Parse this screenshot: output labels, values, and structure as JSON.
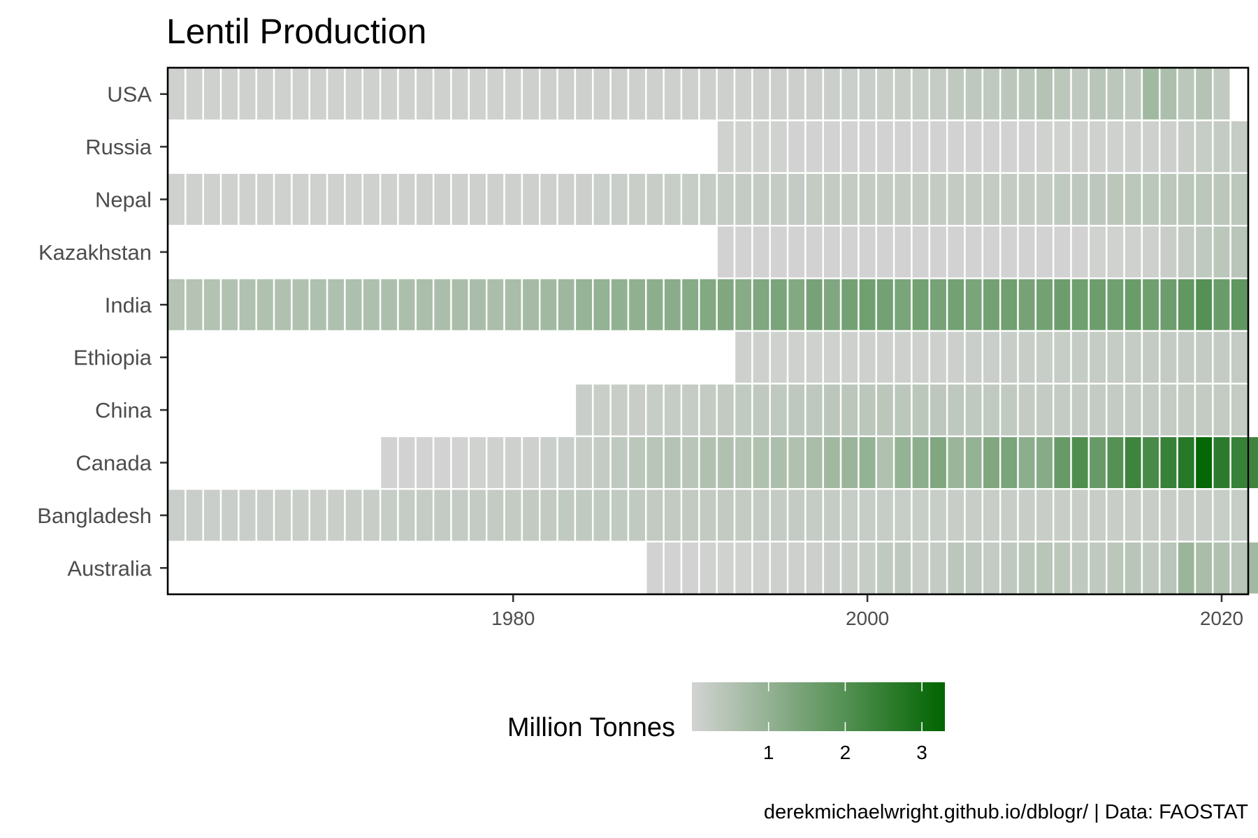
{
  "chart_data": {
    "type": "heatmap",
    "title": "Lentil Production",
    "xlabel": "",
    "ylabel": "",
    "x_ticks": [
      1980,
      2000,
      2020
    ],
    "x_range": [
      1961,
      2021
    ],
    "grid": false,
    "legend": {
      "title": "Million Tonnes",
      "ticks": [
        1,
        2,
        3
      ],
      "range": [
        0,
        3.3
      ],
      "placement": "bottom",
      "colors": {
        "low": "#d3d3d3",
        "high": "#006400"
      }
    },
    "caption": "derekmichaelwright.github.io/dblogr/ | Data: FAOSTAT",
    "series": [
      {
        "name": "USA",
        "start_year": 1961,
        "values": [
          0.03,
          0.03,
          0.03,
          0.03,
          0.03,
          0.03,
          0.03,
          0.03,
          0.03,
          0.03,
          0.03,
          0.03,
          0.03,
          0.03,
          0.03,
          0.03,
          0.03,
          0.03,
          0.03,
          0.03,
          0.04,
          0.04,
          0.04,
          0.04,
          0.04,
          0.04,
          0.05,
          0.05,
          0.05,
          0.05,
          0.05,
          0.05,
          0.05,
          0.06,
          0.06,
          0.06,
          0.06,
          0.07,
          0.07,
          0.08,
          0.09,
          0.1,
          0.12,
          0.14,
          0.2,
          0.22,
          0.2,
          0.24,
          0.24,
          0.35,
          0.25,
          0.2,
          0.28,
          0.24,
          0.2,
          0.6,
          0.45,
          0.25,
          0.35,
          0.18
        ]
      },
      {
        "name": "Russia",
        "start_year": 1992,
        "values": [
          0.02,
          0.02,
          0.02,
          0.02,
          0.01,
          0.01,
          0.01,
          0.01,
          0.01,
          0.01,
          0.01,
          0.01,
          0.01,
          0.01,
          0.01,
          0.01,
          0.01,
          0.01,
          0.02,
          0.02,
          0.03,
          0.03,
          0.03,
          0.05,
          0.05,
          0.06,
          0.1,
          0.12,
          0.15,
          0.14
        ]
      },
      {
        "name": "Nepal",
        "start_year": 1961,
        "values": [
          0.03,
          0.03,
          0.03,
          0.03,
          0.03,
          0.03,
          0.03,
          0.03,
          0.03,
          0.03,
          0.03,
          0.03,
          0.03,
          0.03,
          0.04,
          0.04,
          0.04,
          0.04,
          0.04,
          0.04,
          0.04,
          0.05,
          0.05,
          0.06,
          0.07,
          0.08,
          0.09,
          0.1,
          0.11,
          0.12,
          0.13,
          0.14,
          0.15,
          0.15,
          0.15,
          0.15,
          0.16,
          0.16,
          0.16,
          0.16,
          0.16,
          0.16,
          0.16,
          0.16,
          0.16,
          0.16,
          0.16,
          0.16,
          0.16,
          0.16,
          0.2,
          0.22,
          0.23,
          0.24,
          0.25,
          0.25,
          0.25,
          0.25,
          0.25,
          0.25,
          0.25
        ]
      },
      {
        "name": "Kazakhstan",
        "start_year": 1992,
        "values": [
          0.01,
          0.01,
          0.01,
          0.01,
          0.01,
          0.01,
          0.01,
          0.01,
          0.01,
          0.01,
          0.01,
          0.01,
          0.01,
          0.01,
          0.01,
          0.01,
          0.01,
          0.01,
          0.01,
          0.01,
          0.01,
          0.02,
          0.02,
          0.03,
          0.05,
          0.1,
          0.15,
          0.2,
          0.25,
          0.3
        ]
      },
      {
        "name": "India",
        "start_year": 1961,
        "values": [
          0.35,
          0.35,
          0.36,
          0.37,
          0.38,
          0.4,
          0.4,
          0.4,
          0.42,
          0.42,
          0.44,
          0.44,
          0.45,
          0.45,
          0.46,
          0.47,
          0.48,
          0.48,
          0.47,
          0.5,
          0.55,
          0.6,
          0.65,
          0.75,
          0.8,
          0.82,
          0.85,
          0.9,
          0.95,
          1.0,
          1.05,
          1.1,
          1.0,
          1.1,
          1.2,
          1.05,
          1.25,
          1.1,
          1.3,
          1.35,
          1.3,
          1.2,
          1.3,
          1.25,
          1.3,
          1.2,
          1.3,
          1.35,
          1.25,
          1.3,
          1.4,
          1.35,
          1.4,
          1.35,
          1.45,
          1.35,
          1.4,
          1.6,
          1.8,
          1.45,
          1.62
        ]
      },
      {
        "name": "Ethiopia",
        "start_year": 1993,
        "values": [
          0.04,
          0.04,
          0.03,
          0.03,
          0.03,
          0.03,
          0.04,
          0.04,
          0.04,
          0.04,
          0.05,
          0.04,
          0.06,
          0.08,
          0.08,
          0.1,
          0.1,
          0.11,
          0.12,
          0.13,
          0.14,
          0.14,
          0.14,
          0.15,
          0.15,
          0.15,
          0.15,
          0.15,
          0.15
        ]
      },
      {
        "name": "China",
        "start_year": 1984,
        "values": [
          0.08,
          0.09,
          0.1,
          0.1,
          0.12,
          0.13,
          0.14,
          0.16,
          0.17,
          0.18,
          0.2,
          0.2,
          0.22,
          0.22,
          0.24,
          0.25,
          0.25,
          0.24,
          0.24,
          0.24,
          0.23,
          0.22,
          0.2,
          0.18,
          0.18,
          0.16,
          0.15,
          0.15,
          0.15,
          0.15,
          0.15,
          0.15,
          0.15,
          0.16,
          0.16,
          0.16,
          0.16,
          0.16
        ]
      },
      {
        "name": "Canada",
        "start_year": 1973,
        "values": [
          0.01,
          0.01,
          0.01,
          0.01,
          0.01,
          0.02,
          0.03,
          0.04,
          0.05,
          0.07,
          0.08,
          0.1,
          0.15,
          0.2,
          0.25,
          0.3,
          0.35,
          0.3,
          0.4,
          0.4,
          0.35,
          0.4,
          0.45,
          0.4,
          0.5,
          0.6,
          0.7,
          0.8,
          0.4,
          0.8,
          0.9,
          1.1,
          0.7,
          0.8,
          1.1,
          1.2,
          0.9,
          1.0,
          1.5,
          1.9,
          1.5,
          1.8,
          2.2,
          2.0,
          2.3,
          2.6,
          3.2,
          2.5,
          2.3,
          2.2,
          2.9
        ]
      },
      {
        "name": "Bangladesh",
        "start_year": 1961,
        "values": [
          0.08,
          0.08,
          0.08,
          0.08,
          0.08,
          0.08,
          0.09,
          0.09,
          0.09,
          0.09,
          0.1,
          0.1,
          0.12,
          0.13,
          0.14,
          0.15,
          0.15,
          0.15,
          0.16,
          0.16,
          0.17,
          0.17,
          0.18,
          0.18,
          0.18,
          0.18,
          0.18,
          0.17,
          0.17,
          0.17,
          0.17,
          0.17,
          0.16,
          0.15,
          0.15,
          0.15,
          0.14,
          0.14,
          0.12,
          0.12,
          0.12,
          0.11,
          0.11,
          0.11,
          0.1,
          0.1,
          0.1,
          0.1,
          0.1,
          0.1,
          0.1,
          0.1,
          0.1,
          0.1,
          0.1,
          0.1,
          0.1,
          0.1,
          0.1,
          0.11,
          0.12
        ]
      },
      {
        "name": "Australia",
        "start_year": 1988,
        "values": [
          0.01,
          0.01,
          0.01,
          0.02,
          0.02,
          0.02,
          0.03,
          0.04,
          0.05,
          0.06,
          0.08,
          0.1,
          0.12,
          0.2,
          0.22,
          0.1,
          0.15,
          0.25,
          0.22,
          0.15,
          0.2,
          0.25,
          0.3,
          0.25,
          0.2,
          0.2,
          0.25,
          0.3,
          0.2,
          0.3,
          0.7,
          0.5,
          0.4,
          0.3,
          0.6
        ]
      }
    ]
  }
}
